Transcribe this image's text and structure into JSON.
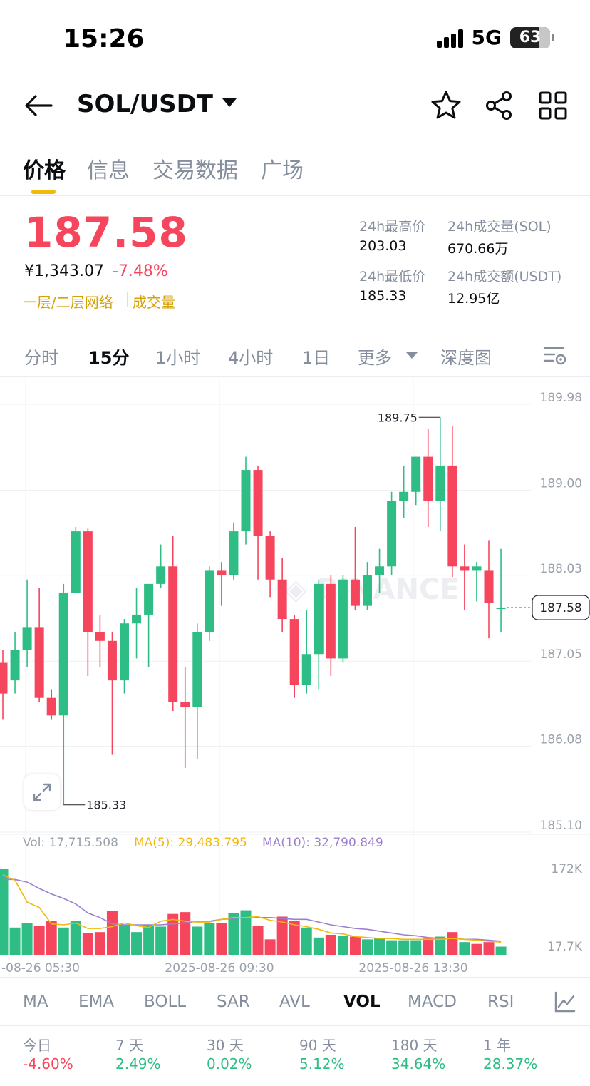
{
  "status_bar": {
    "time": "15:26",
    "network": "5G",
    "battery": "63"
  },
  "header": {
    "pair": "SOL/USDT"
  },
  "tabs": [
    "价格",
    "信息",
    "交易数据",
    "广场"
  ],
  "price": {
    "last": "187.58",
    "cny": "¥1,343.07",
    "change": "-7.48%",
    "tag_network": "一层/二层网络",
    "tag_volume": "成交量"
  },
  "stats": {
    "high_label": "24h最高价",
    "high": "203.03",
    "low_label": "24h最低价",
    "low": "185.33",
    "vol_base_label": "24h成交量(SOL)",
    "vol_base": "670.66万",
    "vol_quote_label": "24h成交额(USDT)",
    "vol_quote": "12.95亿"
  },
  "intervals": [
    "分时",
    "15分",
    "1小时",
    "4小时",
    "1日",
    "更多",
    "深度图"
  ],
  "chart_data": {
    "type": "candlestick",
    "price_axis_ticks": [
      "189.98",
      "189.00",
      "188.03",
      "187.05",
      "186.08",
      "185.10"
    ],
    "current_price_label": "187.58",
    "high_marker": "189.75",
    "low_marker": "185.33",
    "time_labels": [
      "-08-26 05:30",
      "2025-08-26 09:30",
      "2025-08-26 13:30"
    ],
    "volume_axis_ticks": [
      "172K",
      "17.7K"
    ],
    "candles": [
      [
        186.95,
        186.6,
        187.1,
        186.3
      ],
      [
        186.75,
        187.1,
        187.3,
        186.6
      ],
      [
        187.1,
        187.35,
        187.9,
        186.9
      ],
      [
        187.35,
        186.55,
        187.8,
        186.5
      ],
      [
        186.55,
        186.35,
        186.65,
        186.3
      ],
      [
        186.35,
        187.75,
        187.85,
        185.33
      ],
      [
        187.75,
        188.45,
        188.5,
        187.75
      ],
      [
        188.45,
        187.3,
        188.48,
        186.8
      ],
      [
        187.3,
        187.2,
        187.5,
        186.9
      ],
      [
        187.2,
        186.75,
        187.3,
        185.9
      ],
      [
        186.75,
        187.4,
        187.45,
        186.6
      ],
      [
        187.4,
        187.5,
        187.8,
        187.0
      ],
      [
        187.5,
        187.85,
        187.85,
        186.9
      ],
      [
        187.85,
        188.05,
        188.3,
        187.8
      ],
      [
        188.05,
        186.5,
        188.4,
        186.4
      ],
      [
        186.5,
        186.45,
        186.9,
        185.75
      ],
      [
        186.45,
        187.3,
        187.4,
        185.85
      ],
      [
        187.3,
        188.0,
        188.05,
        187.2
      ],
      [
        188.0,
        187.95,
        188.1,
        187.6
      ],
      [
        187.95,
        188.45,
        188.55,
        187.9
      ],
      [
        188.45,
        189.15,
        189.3,
        188.3
      ],
      [
        189.15,
        188.4,
        189.2,
        187.9
      ],
      [
        188.4,
        187.9,
        188.45,
        187.7
      ],
      [
        187.9,
        187.45,
        188.15,
        187.3
      ],
      [
        187.45,
        186.7,
        187.5,
        186.55
      ],
      [
        186.7,
        187.05,
        187.55,
        186.6
      ],
      [
        187.05,
        187.85,
        187.9,
        186.65
      ],
      [
        187.85,
        187.0,
        187.95,
        186.8
      ],
      [
        187.0,
        187.9,
        187.95,
        186.95
      ],
      [
        187.9,
        187.6,
        188.5,
        187.55
      ],
      [
        187.6,
        187.95,
        188.1,
        187.55
      ],
      [
        187.95,
        188.05,
        188.25,
        187.75
      ],
      [
        188.05,
        188.8,
        188.9,
        187.95
      ],
      [
        188.8,
        188.9,
        189.2,
        188.6
      ],
      [
        188.9,
        189.3,
        189.3,
        188.75
      ],
      [
        189.3,
        188.8,
        189.62,
        188.5
      ],
      [
        188.8,
        189.2,
        189.75,
        188.45
      ],
      [
        189.2,
        188.05,
        189.65,
        187.93
      ],
      [
        188.05,
        188.0,
        188.3,
        187.55
      ],
      [
        188.0,
        188.05,
        188.1,
        187.65
      ],
      [
        188.0,
        187.63,
        188.35,
        187.23
      ],
      [
        187.57,
        187.58,
        188.25,
        187.3
      ]
    ],
    "volumes": [
      [
        95,
        1
      ],
      [
        30,
        1
      ],
      [
        35,
        1
      ],
      [
        32,
        0
      ],
      [
        37,
        0
      ],
      [
        30,
        1
      ],
      [
        37,
        1
      ],
      [
        24,
        0
      ],
      [
        25,
        0
      ],
      [
        48,
        0
      ],
      [
        33,
        1
      ],
      [
        25,
        1
      ],
      [
        33,
        1
      ],
      [
        31,
        1
      ],
      [
        45,
        0
      ],
      [
        47,
        0
      ],
      [
        31,
        1
      ],
      [
        35,
        1
      ],
      [
        35,
        0
      ],
      [
        46,
        1
      ],
      [
        49,
        1
      ],
      [
        32,
        0
      ],
      [
        17,
        0
      ],
      [
        42,
        0
      ],
      [
        37,
        0
      ],
      [
        30,
        1
      ],
      [
        19,
        1
      ],
      [
        22,
        0
      ],
      [
        21,
        1
      ],
      [
        20,
        0
      ],
      [
        17,
        1
      ],
      [
        18,
        1
      ],
      [
        16,
        1
      ],
      [
        16,
        1
      ],
      [
        16,
        1
      ],
      [
        18,
        0
      ],
      [
        20,
        1
      ],
      [
        25,
        0
      ],
      [
        14,
        1
      ],
      [
        12,
        0
      ],
      [
        14,
        0
      ],
      [
        9,
        1
      ]
    ],
    "ma5": [
      88,
      82,
      58,
      52,
      34,
      33,
      35,
      29,
      29,
      31,
      35,
      32,
      30,
      37,
      39,
      37,
      36,
      36,
      39,
      41,
      41,
      42,
      38,
      36,
      33,
      31,
      28,
      24,
      23,
      20,
      19,
      18,
      18,
      17,
      17,
      17,
      17,
      18,
      17,
      16,
      15,
      14
    ],
    "ma10": [
      83,
      83,
      80,
      73,
      67,
      62,
      56,
      46,
      41,
      34,
      33,
      33,
      33,
      33,
      34,
      35,
      37,
      37,
      39,
      40,
      41,
      41,
      41,
      40,
      39,
      39,
      36,
      33,
      31,
      29,
      28,
      26,
      24,
      22,
      21,
      19,
      18,
      18,
      17,
      17,
      16,
      15
    ]
  },
  "vol_legend": {
    "vol": "Vol: 17,715.508",
    "ma5": "MA(5): 29,483.795",
    "ma10": "MA(10): 32,790.849"
  },
  "indicators": [
    "MA",
    "EMA",
    "BOLL",
    "SAR",
    "AVL",
    "VOL",
    "MACD",
    "RSI"
  ],
  "performance": [
    {
      "label": "今日",
      "value": "-4.60%"
    },
    {
      "label": "7 天",
      "value": "2.49%"
    },
    {
      "label": "30 天",
      "value": "0.02%"
    },
    {
      "label": "90 天",
      "value": "5.12%"
    },
    {
      "label": "180 天",
      "value": "34.64%"
    },
    {
      "label": "1 年",
      "value": "28.37%"
    }
  ],
  "colors": {
    "up": "#2ebd85",
    "down": "#f6465d",
    "ma5": "#f0b90b",
    "ma10": "#9b7fd1",
    "accent": "#f0b90b"
  }
}
